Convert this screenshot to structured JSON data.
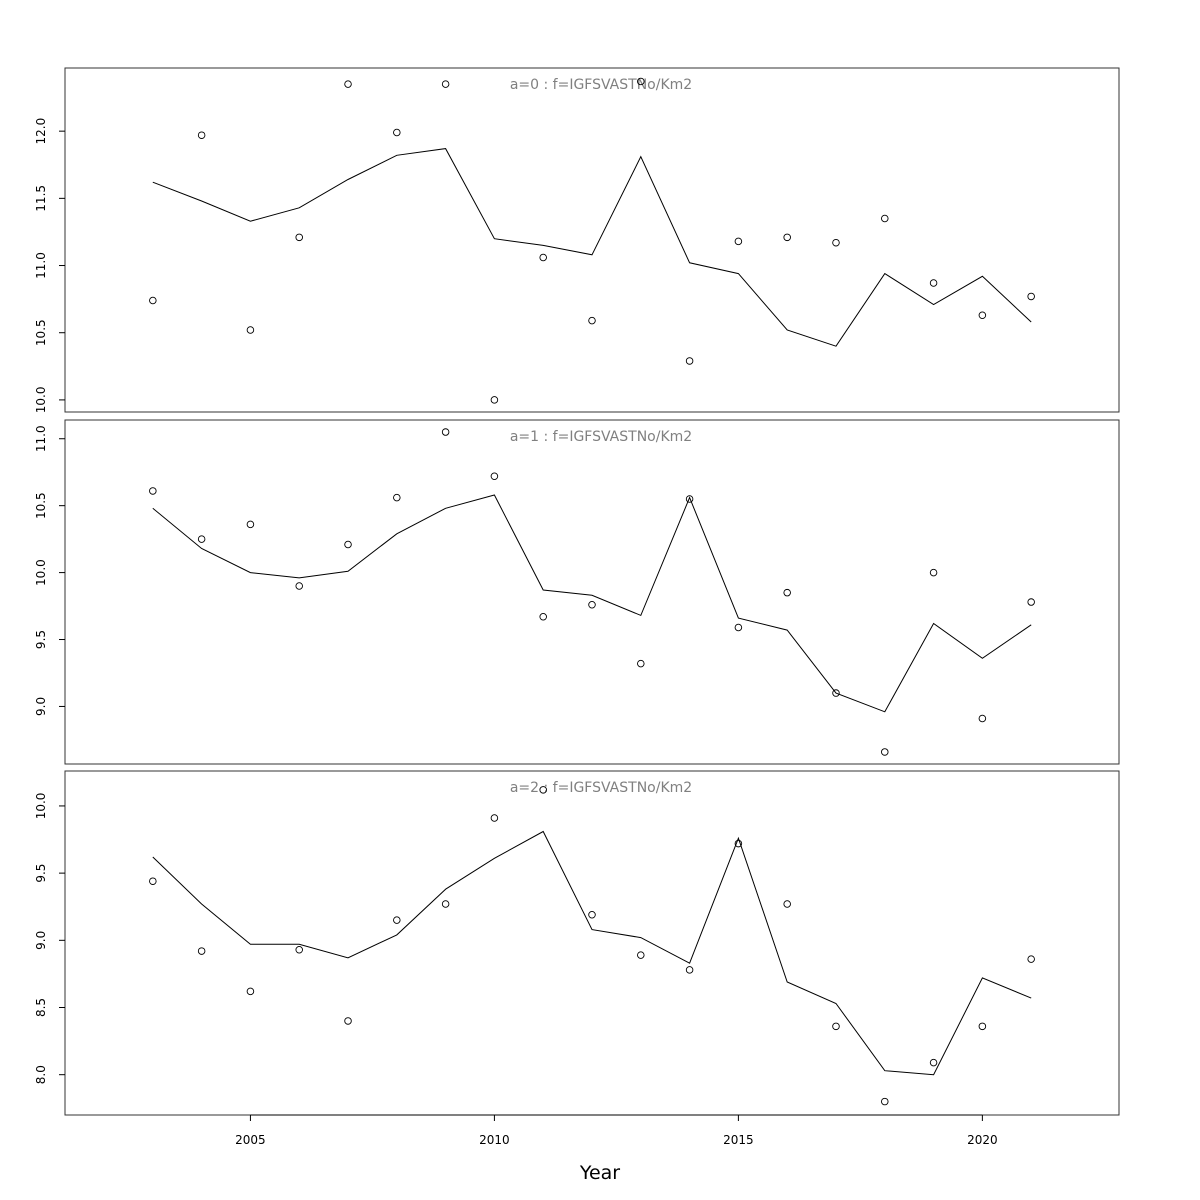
{
  "chart_data": {
    "type": "line",
    "xlabel": "Year",
    "xlim": [
      2001.2,
      2022.8
    ],
    "xticks": [
      2005,
      2010,
      2015,
      2020
    ],
    "x": [
      2003,
      2004,
      2005,
      2006,
      2007,
      2008,
      2009,
      2010,
      2011,
      2012,
      2013,
      2014,
      2015,
      2016,
      2017,
      2018,
      2019,
      2020,
      2021
    ],
    "panels": [
      {
        "title": "a=0  :  f=IGFSVASTNo/Km2",
        "ylim": [
          9.91,
          12.47
        ],
        "yticks": [
          10.0,
          10.5,
          11.0,
          11.5,
          12.0
        ],
        "series": [
          {
            "type": "line",
            "values": [
              11.62,
              11.48,
              11.33,
              11.43,
              11.64,
              11.82,
              11.87,
              11.2,
              11.15,
              11.08,
              11.81,
              11.02,
              10.94,
              10.52,
              10.4,
              10.94,
              10.71,
              10.92,
              10.58
            ]
          },
          {
            "type": "points",
            "values": [
              10.74,
              11.97,
              10.52,
              11.21,
              12.35,
              11.99,
              12.35,
              10.0,
              11.06,
              10.59,
              12.37,
              10.29,
              11.18,
              11.21,
              11.17,
              11.35,
              10.87,
              10.63,
              10.77
            ]
          }
        ]
      },
      {
        "title": "a=1  :  f=IGFSVASTNo/Km2",
        "ylim": [
          8.57,
          11.14
        ],
        "yticks": [
          9.0,
          9.5,
          10.0,
          10.5,
          11.0
        ],
        "series": [
          {
            "type": "line",
            "values": [
              10.48,
              10.18,
              10.0,
              9.96,
              10.01,
              10.29,
              10.48,
              10.58,
              9.87,
              9.83,
              9.68,
              10.56,
              9.66,
              9.57,
              9.1,
              8.96,
              9.62,
              9.36,
              9.61
            ]
          },
          {
            "type": "points",
            "values": [
              10.61,
              10.25,
              10.36,
              9.9,
              10.21,
              10.56,
              11.05,
              10.72,
              9.67,
              9.76,
              9.32,
              10.55,
              9.59,
              9.85,
              9.1,
              8.66,
              10.0,
              8.91,
              9.78
            ]
          }
        ]
      },
      {
        "title": "a=2  :  f=IGFSVASTNo/Km2",
        "ylim": [
          7.7,
          10.26
        ],
        "yticks": [
          8.0,
          8.5,
          9.0,
          9.5,
          10.0
        ],
        "series": [
          {
            "type": "line",
            "values": [
              9.62,
              9.27,
              8.97,
              8.97,
              8.87,
              9.04,
              9.38,
              9.61,
              9.81,
              9.08,
              9.02,
              8.83,
              9.76,
              8.69,
              8.53,
              8.03,
              8.0,
              8.72,
              8.57
            ]
          },
          {
            "type": "points",
            "values": [
              9.44,
              8.92,
              8.62,
              8.93,
              8.4,
              9.15,
              9.27,
              9.91,
              10.12,
              9.19,
              8.89,
              8.78,
              9.72,
              9.27,
              8.36,
              7.8,
              8.09,
              8.36,
              8.86
            ]
          }
        ]
      }
    ]
  }
}
